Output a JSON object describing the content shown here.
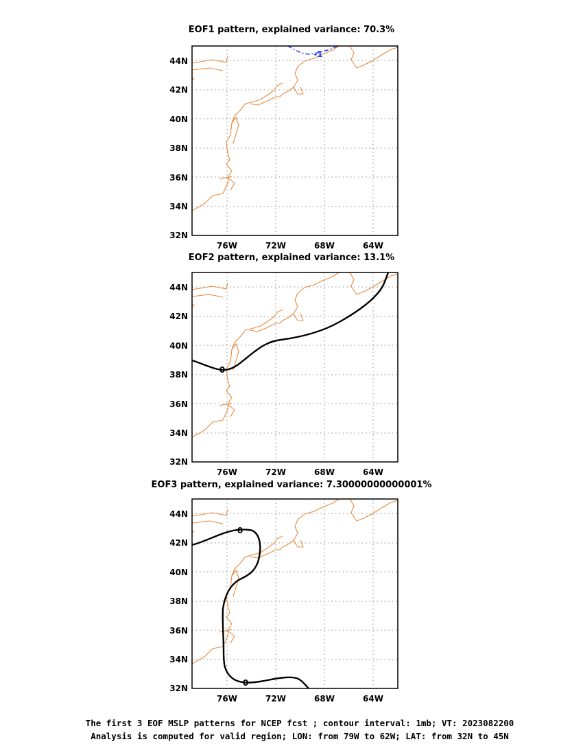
{
  "panels": [
    {
      "title": "EOF1 pattern, explained variance: 70.3%",
      "contour_label": "-1",
      "contour_color": "#1f3fff"
    },
    {
      "title": "EOF2 pattern, explained variance: 13.1%",
      "contour_label": "0",
      "contour_color": "#000000"
    },
    {
      "title": "EOF3 pattern, explained variance: 7.30000000000001%",
      "contour_label": "0",
      "contour_color": "#000000",
      "contour_label_2": "0"
    }
  ],
  "map": {
    "lon_ticks": [
      "76W",
      "72W",
      "68W",
      "64W"
    ],
    "lat_ticks": [
      "44N",
      "42N",
      "40N",
      "38N",
      "36N",
      "34N",
      "32N"
    ],
    "lon_range": "79W to 62W",
    "lat_range": "32N to 45N",
    "coastline_color": "#e8883a",
    "grid": "dotted"
  },
  "caption": {
    "line1": "The first 3 EOF MSLP patterns for NCEP fcst ; contour interval: 1mb; VT: 2023082200",
    "line2": "Analysis is computed for valid region; LON: from 79W to 62W; LAT: from 32N to 45N"
  }
}
